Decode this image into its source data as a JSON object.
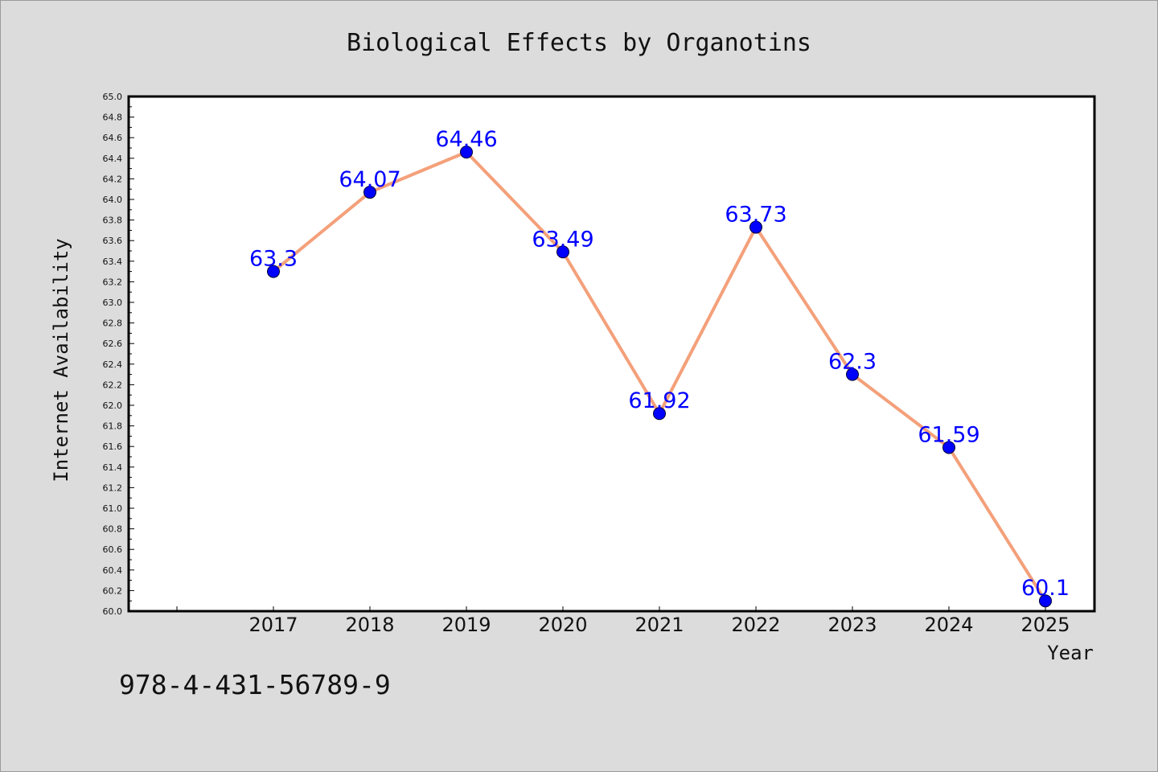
{
  "chart_data": {
    "type": "line",
    "title": "Biological Effects by Organotins",
    "xlabel": "Year",
    "ylabel": "Internet Availability",
    "categories": [
      "2017",
      "2018",
      "2019",
      "2020",
      "2021",
      "2022",
      "2023",
      "2024",
      "2025"
    ],
    "series": [
      {
        "values": [
          63.3,
          64.07,
          64.46,
          63.49,
          61.92,
          63.73,
          62.3,
          61.59,
          60.1
        ],
        "labels": [
          "63.3",
          "64.07",
          "64.46",
          "63.49",
          "61.92",
          "63.73",
          "62.3",
          "61.59",
          "60.1"
        ],
        "line_color": "#f4a07a",
        "marker_color": "#0000ff",
        "label_color": "#0000ff"
      }
    ],
    "ylim": [
      60.0,
      65.0
    ],
    "yticks": [
      "60.0",
      "60.2",
      "60.4",
      "60.6",
      "60.8",
      "61.0",
      "61.2",
      "61.4",
      "61.6",
      "61.8",
      "62.0",
      "62.2",
      "62.4",
      "62.6",
      "62.8",
      "63.0",
      "63.2",
      "63.4",
      "63.6",
      "63.8",
      "64.0",
      "64.2",
      "64.4",
      "64.6",
      "64.8",
      "65.0"
    ],
    "grid": false,
    "legend": "none"
  },
  "footer_code": "978-4-431-56789-9"
}
